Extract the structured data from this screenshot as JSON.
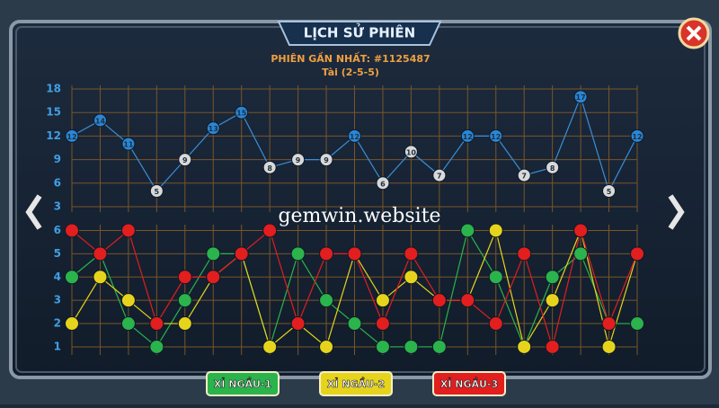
{
  "header": {
    "title": "LỊCH SỬ PHIÊN",
    "latest_session": "PHIÊN GẦN NHẤT: #1125487",
    "latest_result": "Tài (2-5-5)"
  },
  "watermark": "gemwin.website",
  "chart_data": [
    {
      "type": "line",
      "color": "#3a8fd8",
      "values": [
        12,
        14,
        11,
        5,
        9,
        13,
        15,
        8,
        9,
        9,
        12,
        6,
        10,
        7,
        12,
        12,
        7,
        8,
        17,
        5,
        12
      ],
      "point_colors": [
        "#2a86d6",
        "#2a86d6",
        "#2a86d6",
        "#d9d9d9",
        "#d9d9d9",
        "#2a86d6",
        "#2a86d6",
        "#d9d9d9",
        "#d9d9d9",
        "#d9d9d9",
        "#2a86d6",
        "#d9d9d9",
        "#d9d9d9",
        "#d9d9d9",
        "#2a86d6",
        "#2a86d6",
        "#d9d9d9",
        "#d9d9d9",
        "#2a86d6",
        "#d9d9d9",
        "#2a86d6"
      ],
      "ylim": [
        3,
        18
      ],
      "yticks": [
        3,
        6,
        9,
        12,
        15,
        18
      ],
      "grid": true
    },
    {
      "type": "line",
      "series": [
        {
          "name": "XỈ NGẦU-1",
          "color": "#2bb34c",
          "values": [
            4,
            5,
            2,
            1,
            3,
            5,
            5,
            1,
            5,
            3,
            2,
            1,
            1,
            1,
            6,
            4,
            1,
            4,
            5,
            2,
            2
          ]
        },
        {
          "name": "XỈ NGẦU-2",
          "color": "#e6d41c",
          "values": [
            2,
            4,
            3,
            2,
            2,
            4,
            5,
            1,
            2,
            1,
            5,
            3,
            4,
            3,
            3,
            6,
            1,
            3,
            6,
            1,
            5
          ]
        },
        {
          "name": "XỈ NGẦU-3",
          "color": "#e21e1e",
          "values": [
            6,
            5,
            6,
            2,
            4,
            4,
            5,
            6,
            2,
            5,
            5,
            2,
            5,
            3,
            3,
            2,
            5,
            1,
            6,
            2,
            5
          ]
        }
      ],
      "ylim": [
        0.65,
        6.25
      ],
      "yticks": [
        1,
        2,
        3,
        4,
        5,
        6
      ],
      "grid": true
    }
  ]
}
